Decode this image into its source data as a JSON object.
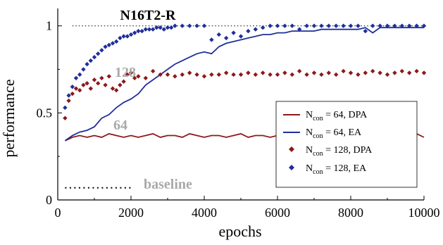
{
  "chart_data": {
    "type": "line",
    "title": "N16T2-R",
    "xlabel": "epochs",
    "ylabel": "performance",
    "xlim": [
      0,
      10000
    ],
    "ylim": [
      0,
      1.1
    ],
    "xticks": [
      0,
      2000,
      4000,
      6000,
      8000,
      10000
    ],
    "yticks": [
      0,
      0.5,
      1
    ],
    "ytick_labels": [
      "0",
      "0.5",
      "1"
    ],
    "reference_line": {
      "y": 1.0,
      "style": "dotted"
    },
    "baseline": {
      "y": 0.07,
      "x_range": [
        200,
        2000
      ],
      "label": "baseline",
      "label_color": "#a9a9a9"
    },
    "annotations": [
      {
        "text": "128",
        "x": 1550,
        "y": 0.75,
        "color": "#a9a9a9"
      },
      {
        "text": "64",
        "x": 1550,
        "y": 0.45,
        "color": "#a9a9a9"
      }
    ],
    "legend": {
      "position": "center-right",
      "entries": [
        {
          "prefix": "N",
          "sub": "con",
          "text": " = 64, DPA"
        },
        {
          "prefix": "N",
          "sub": "con",
          "text": " = 64, EA"
        },
        {
          "prefix": "N",
          "sub": "con",
          "text": " = 128, DPA"
        },
        {
          "prefix": "N",
          "sub": "con",
          "text": " = 128, EA"
        }
      ]
    },
    "series": [
      {
        "marker": "line",
        "color": "#8b1a1a",
        "x": [
          200,
          400,
          600,
          800,
          1000,
          1200,
          1400,
          1600,
          1800,
          2000,
          2200,
          2400,
          2600,
          2800,
          3000,
          3200,
          3400,
          3600,
          3800,
          4000,
          4200,
          4400,
          4600,
          4800,
          5000,
          5200,
          5400,
          5600,
          5800,
          6000,
          6200,
          6400,
          6600,
          6800,
          7000,
          7200,
          7400,
          7600,
          7800,
          8000,
          8200,
          8400,
          8600,
          8800,
          9000,
          9200,
          9400,
          9600,
          9800,
          10000
        ],
        "y": [
          0.34,
          0.36,
          0.37,
          0.36,
          0.37,
          0.36,
          0.38,
          0.37,
          0.36,
          0.37,
          0.36,
          0.37,
          0.38,
          0.36,
          0.37,
          0.37,
          0.36,
          0.38,
          0.37,
          0.36,
          0.37,
          0.37,
          0.36,
          0.37,
          0.38,
          0.36,
          0.37,
          0.37,
          0.36,
          0.37,
          0.37,
          0.36,
          0.38,
          0.37,
          0.36,
          0.37,
          0.37,
          0.36,
          0.37,
          0.37,
          0.36,
          0.37,
          0.38,
          0.36,
          0.37,
          0.37,
          0.35,
          0.37,
          0.38,
          0.36
        ]
      },
      {
        "marker": "line",
        "color": "#1f2f9a",
        "x": [
          200,
          400,
          600,
          800,
          1000,
          1200,
          1400,
          1600,
          1800,
          2000,
          2200,
          2400,
          2600,
          2800,
          3000,
          3200,
          3400,
          3600,
          3800,
          4000,
          4200,
          4400,
          4600,
          4800,
          5000,
          5200,
          5400,
          5600,
          5800,
          6000,
          6200,
          6400,
          6600,
          6800,
          7000,
          7200,
          7400,
          7600,
          7800,
          8000,
          8200,
          8400,
          8600,
          8800,
          9000,
          9200,
          9400,
          9600,
          9800,
          10000
        ],
        "y": [
          0.34,
          0.37,
          0.39,
          0.4,
          0.42,
          0.47,
          0.49,
          0.53,
          0.56,
          0.58,
          0.61,
          0.66,
          0.69,
          0.72,
          0.75,
          0.78,
          0.8,
          0.82,
          0.84,
          0.85,
          0.84,
          0.88,
          0.9,
          0.91,
          0.92,
          0.93,
          0.94,
          0.95,
          0.95,
          0.96,
          0.96,
          0.97,
          0.97,
          0.97,
          0.97,
          0.98,
          0.98,
          0.98,
          0.98,
          0.98,
          0.98,
          0.99,
          0.96,
          0.99,
          0.99,
          0.99,
          0.99,
          0.99,
          0.99,
          0.99
        ]
      },
      {
        "marker": "diamond",
        "color": "#8b1a1a",
        "x": [
          200,
          300,
          400,
          500,
          600,
          700,
          800,
          900,
          1000,
          1100,
          1200,
          1300,
          1400,
          1500,
          1600,
          1700,
          1800,
          1900,
          2000,
          2100,
          2200,
          2400,
          2600,
          2800,
          3000,
          3200,
          3400,
          3600,
          3800,
          4000,
          4200,
          4400,
          4600,
          4800,
          5000,
          5200,
          5400,
          5600,
          5800,
          6000,
          6200,
          6400,
          6600,
          6800,
          7000,
          7200,
          7400,
          7600,
          7800,
          8000,
          8200,
          8400,
          8600,
          8800,
          9000,
          9200,
          9400,
          9600,
          9800,
          10000
        ],
        "y": [
          0.47,
          0.57,
          0.61,
          0.64,
          0.63,
          0.66,
          0.67,
          0.64,
          0.69,
          0.67,
          0.7,
          0.66,
          0.71,
          0.64,
          0.63,
          0.66,
          0.68,
          0.72,
          0.73,
          0.7,
          0.71,
          0.7,
          0.74,
          0.72,
          0.72,
          0.71,
          0.72,
          0.73,
          0.72,
          0.71,
          0.72,
          0.72,
          0.73,
          0.72,
          0.72,
          0.73,
          0.72,
          0.73,
          0.72,
          0.72,
          0.73,
          0.72,
          0.74,
          0.72,
          0.73,
          0.72,
          0.73,
          0.72,
          0.74,
          0.73,
          0.72,
          0.73,
          0.74,
          0.73,
          0.72,
          0.73,
          0.74,
          0.73,
          0.74,
          0.73
        ]
      },
      {
        "marker": "diamond",
        "color": "#1f2f9a",
        "x": [
          200,
          300,
          400,
          500,
          600,
          700,
          800,
          900,
          1000,
          1100,
          1200,
          1300,
          1400,
          1500,
          1600,
          1700,
          1800,
          1900,
          2000,
          2100,
          2200,
          2300,
          2400,
          2500,
          2600,
          2700,
          2800,
          2900,
          3000,
          3100,
          3200,
          3400,
          3600,
          3800,
          4000,
          4200,
          4400,
          4600,
          4800,
          5000,
          5200,
          5400,
          5600,
          5800,
          6000,
          6200,
          6400,
          6600,
          6800,
          7000,
          7200,
          7400,
          7600,
          7800,
          8000,
          8200,
          8400,
          8600,
          8800,
          9000,
          9200,
          9400,
          9600,
          9800,
          10000
        ],
        "y": [
          0.53,
          0.6,
          0.65,
          0.7,
          0.72,
          0.75,
          0.78,
          0.8,
          0.82,
          0.84,
          0.86,
          0.88,
          0.89,
          0.9,
          0.91,
          0.93,
          0.94,
          0.94,
          0.95,
          0.96,
          0.97,
          0.97,
          0.98,
          0.98,
          0.98,
          0.99,
          0.99,
          0.98,
          0.99,
          0.99,
          1.0,
          1.0,
          1.0,
          1.0,
          1.0,
          0.92,
          0.95,
          0.93,
          0.96,
          0.94,
          0.97,
          0.98,
          0.99,
          1.0,
          1.0,
          1.0,
          1.0,
          0.98,
          1.0,
          1.0,
          1.0,
          1.0,
          1.0,
          1.0,
          1.0,
          1.0,
          0.97,
          1.0,
          1.0,
          1.0,
          1.0,
          1.0,
          1.0,
          1.0,
          1.0
        ]
      }
    ]
  }
}
